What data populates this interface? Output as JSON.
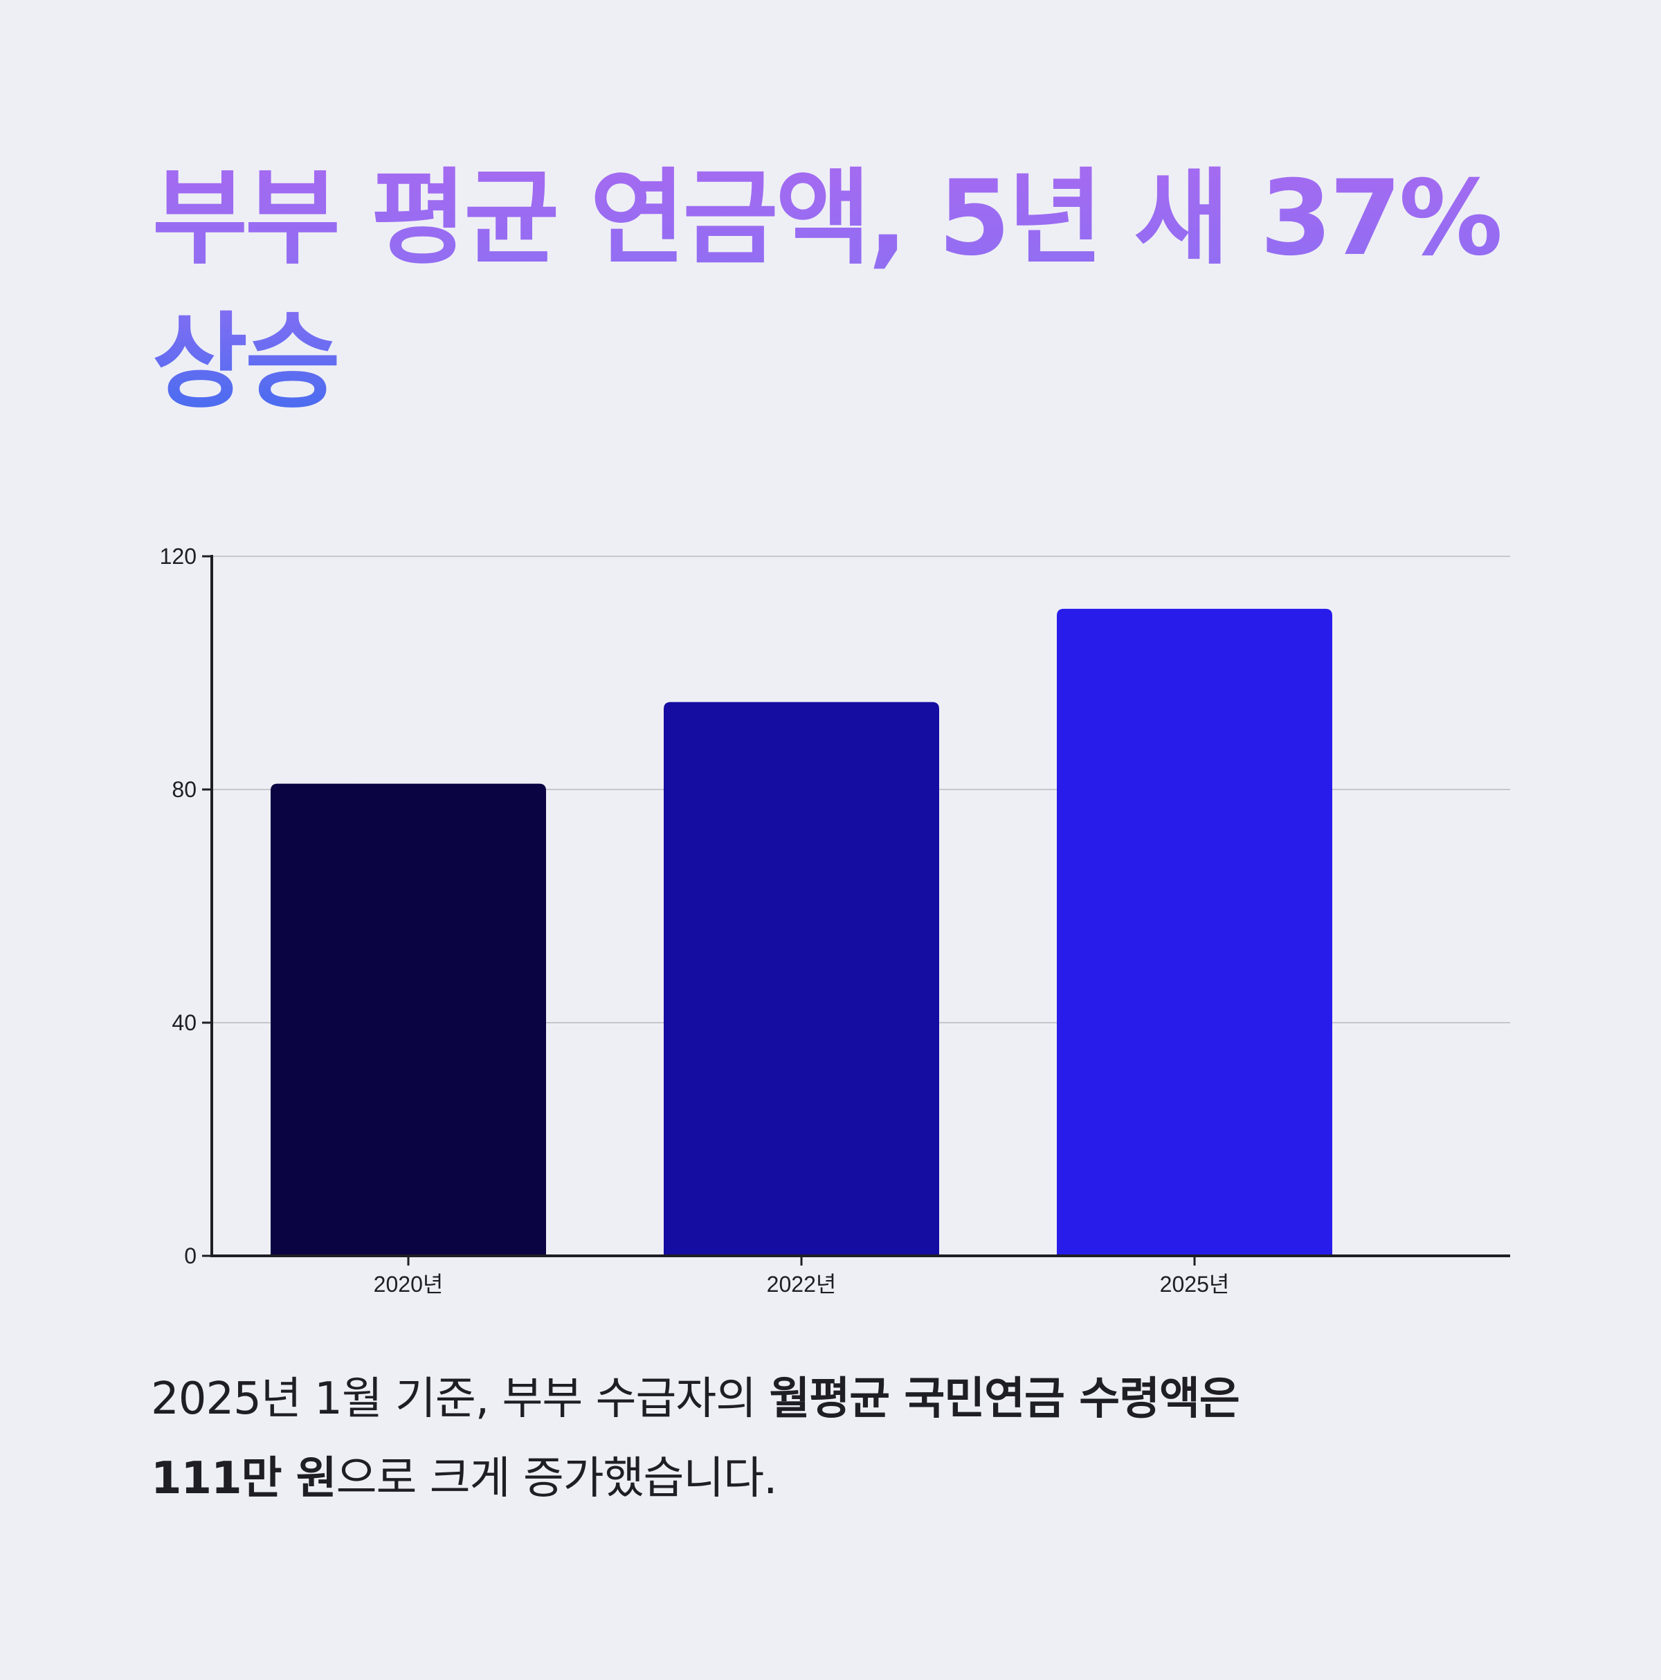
{
  "title": "부부 평균 연금액, 5년 새 37% 상승",
  "caption": {
    "part1": "2025년 1월 기준, 부부 수급자의 ",
    "strong1": "월평균 국민연금 수령액은",
    "strong2": "111만 원",
    "part2": "으로 크게 증가했습니다."
  },
  "colors": {
    "background": "#eeeff5",
    "title_gradient_top": "#a76af0",
    "title_gradient_bottom": "#3d6cef",
    "bar_2020": "#0a0443",
    "bar_2022": "#150ca2",
    "bar_2025": "#281ceb",
    "axis": "#1e1e24",
    "grid": "#c6c7cd"
  },
  "chart_data": {
    "type": "bar",
    "categories": [
      "2020년",
      "2022년",
      "2025년"
    ],
    "values": [
      81,
      95,
      111
    ],
    "ylim": [
      0,
      120
    ],
    "yticks": [
      0,
      40,
      80,
      120
    ],
    "title": "",
    "xlabel": "",
    "ylabel": "",
    "grid": true,
    "legend": "none"
  }
}
